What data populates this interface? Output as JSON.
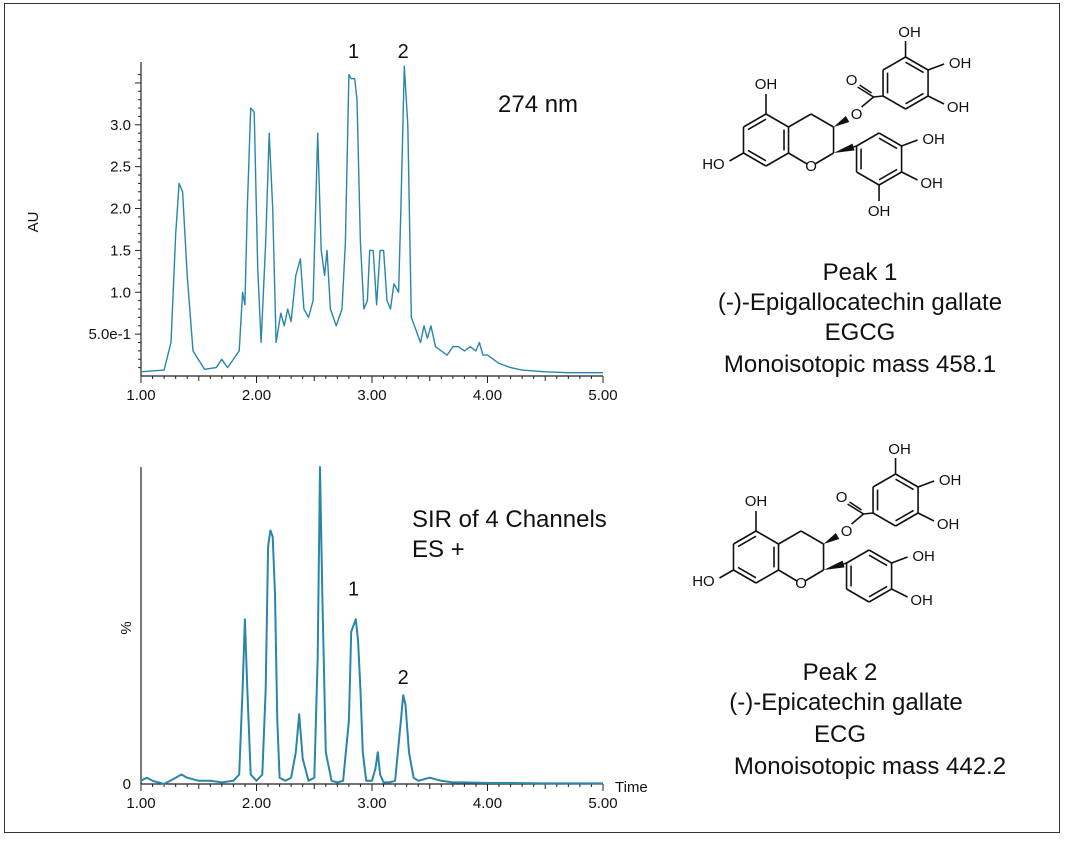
{
  "colors": {
    "trace": "#2a86a8",
    "axis": "#222222",
    "text": "#111111"
  },
  "chart_data": [
    {
      "type": "line",
      "chart_id": "uv",
      "annotation": "274 nm",
      "ylabel": "AU",
      "xlim": [
        1.0,
        5.0
      ],
      "ylim": [
        0.0,
        3.75
      ],
      "xticks": [
        "1.00",
        "2.00",
        "3.00",
        "4.00",
        "5.00"
      ],
      "yticks": [
        {
          "label": "5.0e-1",
          "value": 0.5
        },
        {
          "label": "1.0",
          "value": 1.0
        },
        {
          "label": "1.5",
          "value": 1.5
        },
        {
          "label": "2.0",
          "value": 2.0
        },
        {
          "label": "2.5",
          "value": 2.5
        },
        {
          "label": "3.0",
          "value": 3.0
        }
      ],
      "peak_labels": [
        {
          "label": "1",
          "x": 2.84,
          "y": 3.7
        },
        {
          "label": "2",
          "x": 3.27,
          "y": 3.7
        }
      ],
      "series": [
        {
          "x": [
            1.0,
            1.2,
            1.26,
            1.3,
            1.33,
            1.36,
            1.4,
            1.45,
            1.55,
            1.65,
            1.7,
            1.75,
            1.85,
            1.88,
            1.9,
            1.92,
            1.95,
            1.98,
            2.01,
            2.04,
            2.08,
            2.11,
            2.14,
            2.17,
            2.21,
            2.24,
            2.27,
            2.3,
            2.34,
            2.38,
            2.41,
            2.45,
            2.49,
            2.53,
            2.56,
            2.59,
            2.61,
            2.64,
            2.69,
            2.74,
            2.77,
            2.8,
            2.82,
            2.85,
            2.87,
            2.9,
            2.93,
            2.96,
            2.98,
            3.01,
            3.04,
            3.07,
            3.1,
            3.13,
            3.16,
            3.19,
            3.23,
            3.25,
            3.28,
            3.31,
            3.34,
            3.38,
            3.42,
            3.45,
            3.48,
            3.51,
            3.55,
            3.6,
            3.65,
            3.7,
            3.75,
            3.8,
            3.85,
            3.9,
            3.93,
            3.96,
            4.0,
            4.1,
            4.2,
            4.3,
            4.5,
            4.7,
            5.0
          ],
          "y": [
            0.05,
            0.07,
            0.4,
            1.7,
            2.3,
            2.2,
            1.2,
            0.3,
            0.08,
            0.1,
            0.2,
            0.1,
            0.3,
            1.0,
            0.85,
            2.0,
            3.2,
            3.15,
            1.3,
            0.4,
            1.6,
            2.9,
            2.0,
            0.4,
            0.75,
            0.6,
            0.8,
            0.65,
            1.2,
            1.4,
            0.8,
            0.7,
            0.9,
            2.9,
            1.5,
            1.2,
            1.5,
            0.8,
            0.6,
            0.8,
            1.6,
            3.6,
            3.55,
            3.55,
            3.3,
            1.6,
            0.8,
            0.9,
            1.5,
            1.5,
            0.85,
            1.5,
            1.5,
            0.9,
            0.8,
            1.1,
            1.0,
            2.0,
            3.7,
            3.0,
            0.7,
            0.55,
            0.4,
            0.6,
            0.45,
            0.6,
            0.35,
            0.3,
            0.25,
            0.35,
            0.35,
            0.3,
            0.35,
            0.3,
            0.4,
            0.25,
            0.25,
            0.15,
            0.1,
            0.07,
            0.05,
            0.04,
            0.04
          ]
        }
      ]
    },
    {
      "type": "line",
      "chart_id": "sir",
      "annotation": [
        "SIR of 4 Channels",
        "ES +"
      ],
      "ylabel": "%",
      "xlabel": "Time",
      "xlim": [
        1.0,
        5.0
      ],
      "ylim": [
        0,
        100
      ],
      "xticks": [
        "1.00",
        "2.00",
        "3.00",
        "4.00",
        "5.00"
      ],
      "yticks": [
        {
          "label": "0",
          "value": 0
        }
      ],
      "peak_labels": [
        {
          "label": "1",
          "x": 2.84,
          "y": 57
        },
        {
          "label": "2",
          "x": 3.27,
          "y": 29
        }
      ],
      "series": [
        {
          "x": [
            1.0,
            1.05,
            1.1,
            1.2,
            1.3,
            1.35,
            1.4,
            1.5,
            1.6,
            1.7,
            1.8,
            1.85,
            1.88,
            1.9,
            1.92,
            1.95,
            2.0,
            2.05,
            2.08,
            2.1,
            2.12,
            2.14,
            2.16,
            2.18,
            2.2,
            2.25,
            2.3,
            2.34,
            2.37,
            2.4,
            2.45,
            2.5,
            2.53,
            2.55,
            2.57,
            2.6,
            2.65,
            2.7,
            2.75,
            2.8,
            2.82,
            2.84,
            2.86,
            2.88,
            2.9,
            2.92,
            2.95,
            3.0,
            3.03,
            3.05,
            3.07,
            3.1,
            3.15,
            3.2,
            3.25,
            3.27,
            3.29,
            3.32,
            3.36,
            3.4,
            3.5,
            3.6,
            3.7,
            3.8,
            4.0,
            4.2,
            4.5,
            5.0
          ],
          "y": [
            1,
            2,
            1,
            0,
            2,
            3,
            2,
            1,
            1,
            0.5,
            1,
            3,
            30,
            52,
            30,
            3,
            1,
            3,
            30,
            75,
            80,
            78,
            60,
            20,
            2,
            1,
            2,
            10,
            22,
            8,
            1,
            2,
            40,
            100,
            60,
            10,
            1,
            0.5,
            1,
            20,
            48,
            50,
            52,
            45,
            30,
            10,
            1,
            1,
            5,
            10,
            3,
            0.5,
            0.5,
            1,
            20,
            28,
            25,
            10,
            2,
            1,
            2,
            1,
            0.5,
            0.5,
            0.3,
            0.3,
            0.2,
            0.2
          ]
        }
      ]
    }
  ],
  "structures": {
    "top": {
      "atom_labels": [
        "OH",
        "OH",
        "OH",
        "O",
        "O",
        "OH",
        "HO",
        "O",
        "OH",
        "OH",
        "OH"
      ],
      "caption": [
        "Peak 1",
        "(-)-Epigallocatechin gallate",
        "EGCG",
        "Monoisotopic mass 458.1"
      ]
    },
    "bottom": {
      "atom_labels": [
        "OH",
        "OH",
        "OH",
        "O",
        "O",
        "OH",
        "HO",
        "O",
        "OH",
        "OH"
      ],
      "caption": [
        "Peak 2",
        "(-)-Epicatechin gallate",
        "ECG",
        "Monoisotopic mass 442.2"
      ]
    }
  }
}
